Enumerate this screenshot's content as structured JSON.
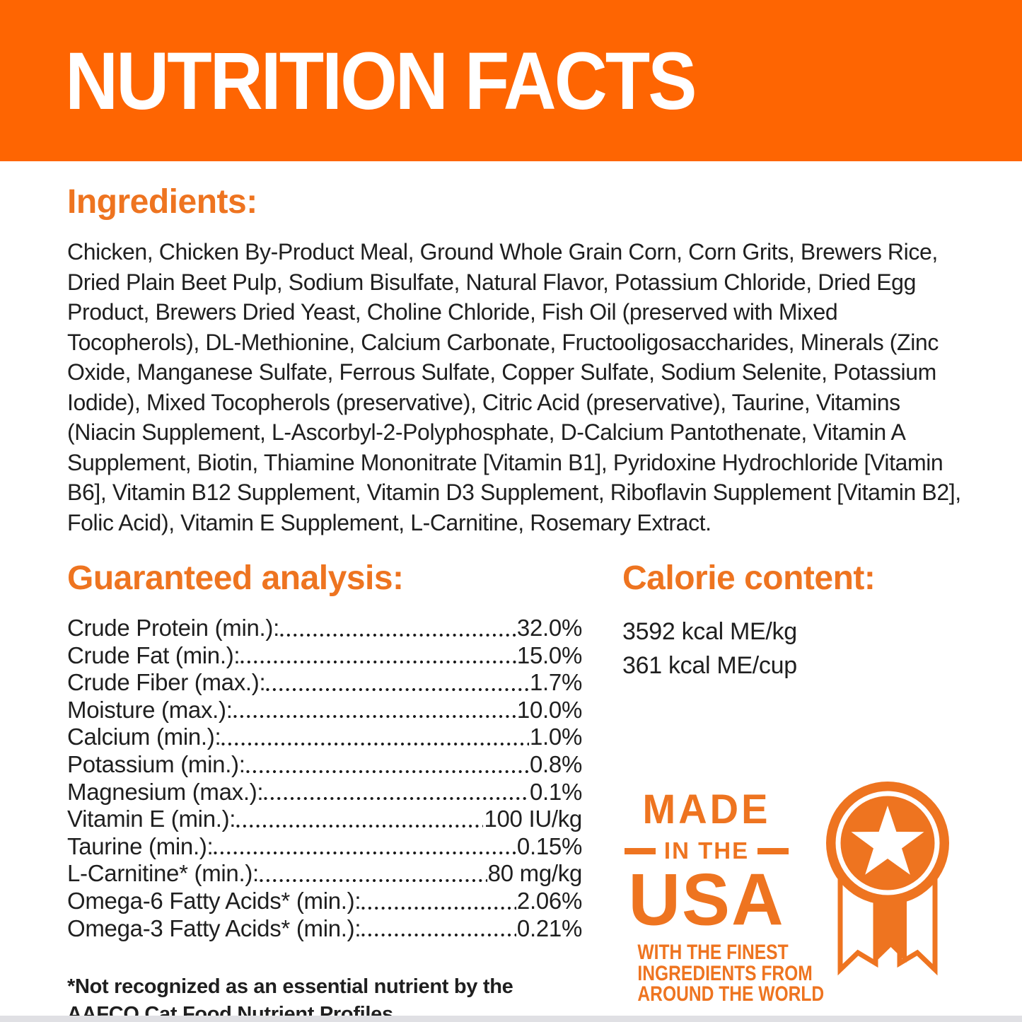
{
  "colors": {
    "banner_orange": "#fe6502",
    "accent_orange": "#ee7420",
    "text_dark": "#1f1f1f"
  },
  "header": {
    "title": "NUTRITION FACTS"
  },
  "ingredients": {
    "heading": "Ingredients:",
    "text": "Chicken, Chicken By-Product Meal, Ground Whole Grain Corn, Corn Grits, Brewers Rice, Dried Plain Beet Pulp, Sodium Bisulfate, Natural Flavor, Potassium Chloride, Dried Egg Product, Brewers Dried Yeast, Choline Chloride, Fish Oil (preserved with Mixed Tocopherols), DL-Methionine, Calcium Carbonate, Fructooligosaccharides, Minerals (Zinc Oxide, Manganese Sulfate, Ferrous Sulfate, Copper Sulfate, Sodium Selenite, Potassium Iodide), Mixed Tocopherols (preservative), Citric Acid (preservative), Taurine, Vitamins (Niacin Supplement, L-Ascorbyl-2-Polyphosphate, D-Calcium Pantothenate, Vitamin A Supplement, Biotin, Thiamine Mononitrate [Vitamin B1], Pyridoxine Hydrochloride [Vitamin B6], Vitamin B12 Supplement, Vitamin D3 Supplement, Riboflavin Supplement [Vitamin B2], Folic Acid), Vitamin E Supplement, L-Carnitine, Rosemary Extract."
  },
  "guaranteed_analysis": {
    "heading": "Guaranteed analysis:",
    "rows": [
      {
        "label": "Crude Protein (min.):",
        "value": "32.0%"
      },
      {
        "label": "Crude Fat (min.):",
        "value": "15.0%"
      },
      {
        "label": "Crude Fiber (max.):",
        "value": "1.7%"
      },
      {
        "label": "Moisture (max.):",
        "value": "10.0%"
      },
      {
        "label": "Calcium (min.):",
        "value": "1.0%"
      },
      {
        "label": "Potassium (min.):",
        "value": "0.8%"
      },
      {
        "label": "Magnesium (max.):",
        "value": "0.1%"
      },
      {
        "label": "Vitamin E (min.):",
        "value": "100 IU/kg"
      },
      {
        "label": "Taurine (min.):",
        "value": "0.15%"
      },
      {
        "label": "L-Carnitine* (min.):",
        "value": "80 mg/kg"
      },
      {
        "label": "Omega-6 Fatty Acids* (min.):",
        "value": "2.06%"
      },
      {
        "label": "Omega-3 Fatty Acids* (min.):",
        "value": "0.21%"
      }
    ]
  },
  "calorie_content": {
    "heading": "Calorie content:",
    "lines": [
      "3592 kcal ME/kg",
      "361 kcal ME/cup"
    ]
  },
  "made_in_usa": {
    "line1": "MADE",
    "line2": "IN THE",
    "line3": "USA",
    "tagline_lines": [
      "WITH THE FINEST",
      "INGREDIENTS FROM",
      "AROUND THE WORLD"
    ],
    "icon": "medal-star-ribbon-icon"
  },
  "footnote": "*Not recognized as an essential nutrient by the AAFCO Cat Food Nutrient Profiles."
}
